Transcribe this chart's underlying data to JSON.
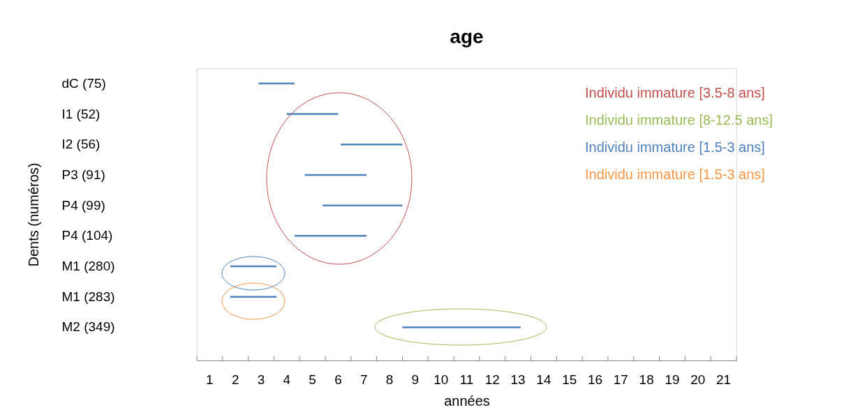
{
  "chart_data": {
    "type": "bar",
    "orientation": "horizontal",
    "title": "age",
    "xlabel": "années",
    "ylabel": "Dents (numéros)",
    "categories": [
      "dC (75)",
      "I1 (52)",
      "I2 (56)",
      "P3 (91)",
      "P4 (99)",
      "P4 (104)",
      "M1 (280)",
      "M1 (283)",
      "M2 (349)"
    ],
    "base": [
      2.9,
      4.0,
      6.1,
      4.7,
      5.4,
      4.3,
      1.8,
      1.8,
      8.5
    ],
    "values": [
      1.4,
      2.0,
      2.4,
      2.4,
      3.1,
      2.8,
      1.8,
      1.8,
      4.6
    ],
    "color": "#4f81bd",
    "xlim": [
      0.5,
      21.5
    ],
    "xticks": [
      {
        "value": 0.5,
        "label": null
      },
      1,
      {
        "value": 1.5,
        "label": null
      },
      2,
      {
        "value": 2.5,
        "label": null
      },
      3,
      {
        "value": 3.5,
        "label": null
      },
      4,
      {
        "value": 4.5,
        "label": null
      },
      5,
      {
        "value": 5.5,
        "label": null
      },
      6,
      {
        "value": 6.5,
        "label": null
      },
      7,
      {
        "value": 7.5,
        "label": null
      },
      8,
      {
        "value": 8.5,
        "label": null
      },
      9,
      {
        "value": 9.5,
        "label": null
      },
      10,
      {
        "value": 10.5,
        "label": null
      },
      11,
      {
        "value": 11.5,
        "label": null
      },
      12,
      {
        "value": 12.5,
        "label": null
      },
      13,
      {
        "value": 13.5,
        "label": null
      },
      14,
      {
        "value": 14.5,
        "label": null
      },
      15,
      {
        "value": 15.5,
        "label": null
      },
      16,
      {
        "value": 16.5,
        "label": null
      },
      17,
      {
        "value": 17.5,
        "label": null
      },
      18,
      {
        "value": 18.5,
        "label": null
      },
      19,
      {
        "value": 19.5,
        "label": null
      },
      20,
      {
        "value": 20.5,
        "label": null
      },
      21,
      {
        "value": 21.5,
        "label": null
      }
    ],
    "grid": false,
    "annotations": [
      "Individu immature [3.5-8 ans]",
      "Individu immature [8-12.5 ans]",
      "Individu immature [1.5-3 ans]",
      "Individu immature [1.5-3 ans]"
    ]
  }
}
